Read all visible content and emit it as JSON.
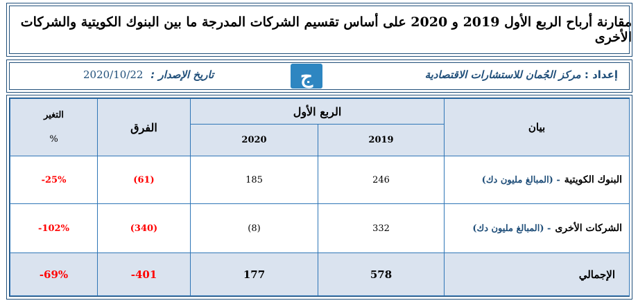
{
  "title": "مقارنة أرباح الربع الأول 2019 و 2020 على أساس تقسيم الشركات المدرجة ما بين البنوك الكويتية والشركات الأخرى",
  "info": {
    "prepared_label": "إعداد :",
    "prepared_by": "مركز الجُمان للاستشارات الاقتصادية",
    "issue_label": "تاريخ الإصدار :",
    "issue_date": "2020/10/22",
    "logo_glyph": "ج",
    "logo_color": "#2e86c1"
  },
  "table": {
    "header": {
      "statement": "بيان",
      "quarter": "الربع الأول",
      "year1": "2019",
      "year2": "2020",
      "difference": "الفرق",
      "change": "التغير",
      "change_unit": "%"
    },
    "rows": [
      {
        "label": "البنوك الكويتية",
        "note": "-  (المبالغ مليون دك)",
        "y2019": "246",
        "y2020": "185",
        "diff": "(61)",
        "change": "-25%"
      },
      {
        "label": "الشركات الأخرى",
        "note": "-  (المبالغ مليون دك)",
        "y2019": "332",
        "y2020": "(8)",
        "diff": "(340)",
        "change": "-102%"
      }
    ],
    "total": {
      "label": "الإجمالي",
      "y2019": "578",
      "y2020": "177",
      "diff": "-401",
      "change": "-69%"
    }
  },
  "colors": {
    "border": "#1f4e79",
    "header_bg": "#dae3ef",
    "negative": "#ff0000"
  }
}
